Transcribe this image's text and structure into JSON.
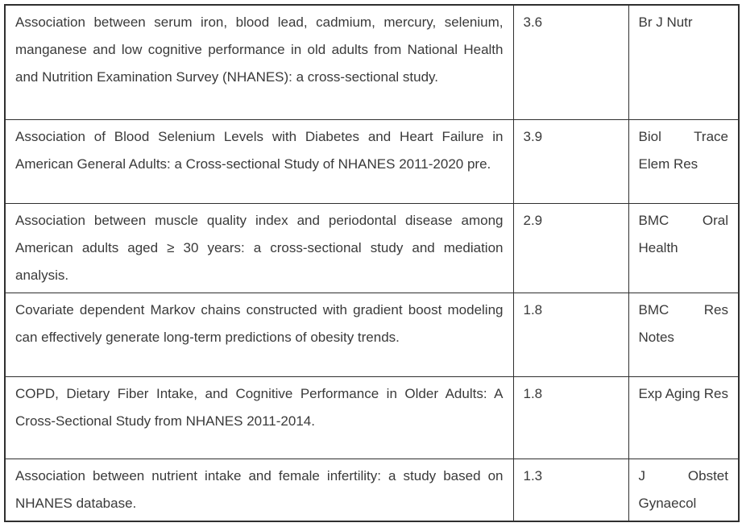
{
  "table": {
    "columns": [
      "title",
      "impact_factor",
      "journal"
    ],
    "rows": [
      {
        "title": "Association between serum iron, blood lead, cadmium, mercury, selenium, manganese and low cognitive performance in old adults from National Health and Nutrition Examination Survey (NHANES): a cross-sectional study.",
        "impact_factor": "3.6",
        "journal": "Br J Nutr"
      },
      {
        "title": "Association of Blood Selenium Levels with Diabetes and Heart Failure in American General Adults: a Cross-sectional Study of NHANES 2011-2020 pre.",
        "impact_factor": "3.9",
        "journal": "Biol Trace Elem Res"
      },
      {
        "title": "Association between muscle quality index and periodontal disease among American adults aged ≥ 30 years: a cross-sectional study and mediation analysis.",
        "impact_factor": "2.9",
        "journal": "BMC Oral Health"
      },
      {
        "title": "Covariate dependent Markov chains constructed with gradient boost modeling can effectively generate long-term predictions of obesity trends.",
        "impact_factor": "1.8",
        "journal": "BMC Res Notes"
      },
      {
        "title": "COPD, Dietary Fiber Intake, and Cognitive Performance in Older Adults: A Cross-Sectional Study from NHANES 2011-2014.",
        "impact_factor": "1.8",
        "journal": "Exp Aging Res"
      },
      {
        "title": "Association between nutrient intake and female infertility: a study based on NHANES database.",
        "impact_factor": "1.3",
        "journal": "J Obstet Gynaecol"
      }
    ]
  },
  "colors": {
    "text": "#3a3a3a",
    "border": "#2f2f2f",
    "background": "#ffffff"
  }
}
